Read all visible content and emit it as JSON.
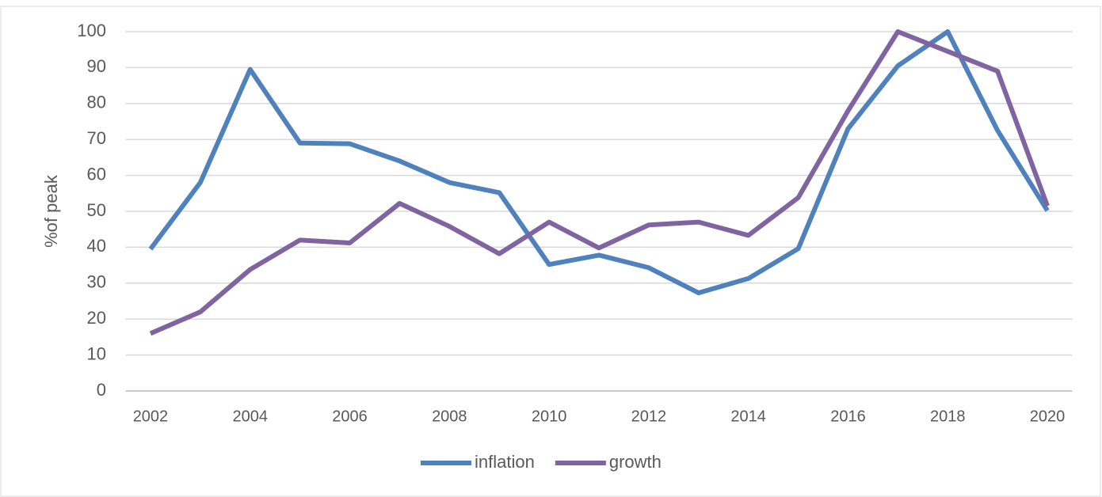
{
  "chart_data": {
    "type": "line",
    "y_label": "%of peak",
    "x": [
      2002,
      2003,
      2004,
      2005,
      2006,
      2007,
      2008,
      2009,
      2010,
      2011,
      2012,
      2013,
      2014,
      2015,
      2016,
      2017,
      2018,
      2019,
      2020
    ],
    "xlim": [
      2001.5,
      2020.5
    ],
    "xticks": [
      2002,
      2004,
      2006,
      2008,
      2010,
      2012,
      2014,
      2016,
      2018,
      2020
    ],
    "ylim": [
      0,
      100
    ],
    "yticks": [
      0,
      10,
      20,
      30,
      40,
      50,
      60,
      70,
      80,
      90,
      100
    ],
    "grid": true,
    "legend": "bottom",
    "series": [
      {
        "name": "inflation",
        "color": "#4f81bd",
        "values": [
          39.5,
          58,
          89.5,
          69,
          68.8,
          64,
          58,
          55.2,
          35.2,
          37.8,
          34.3,
          27.3,
          31.3,
          39.6,
          73,
          90.5,
          100,
          72.5,
          50.2
        ]
      },
      {
        "name": "growth",
        "color": "#8064a2",
        "values": [
          16,
          22,
          33.8,
          42,
          41.2,
          52.2,
          45.8,
          38.2,
          47,
          39.8,
          46.2,
          47,
          43.3,
          53.8,
          78,
          100,
          94.5,
          89,
          51.5
        ]
      }
    ]
  }
}
